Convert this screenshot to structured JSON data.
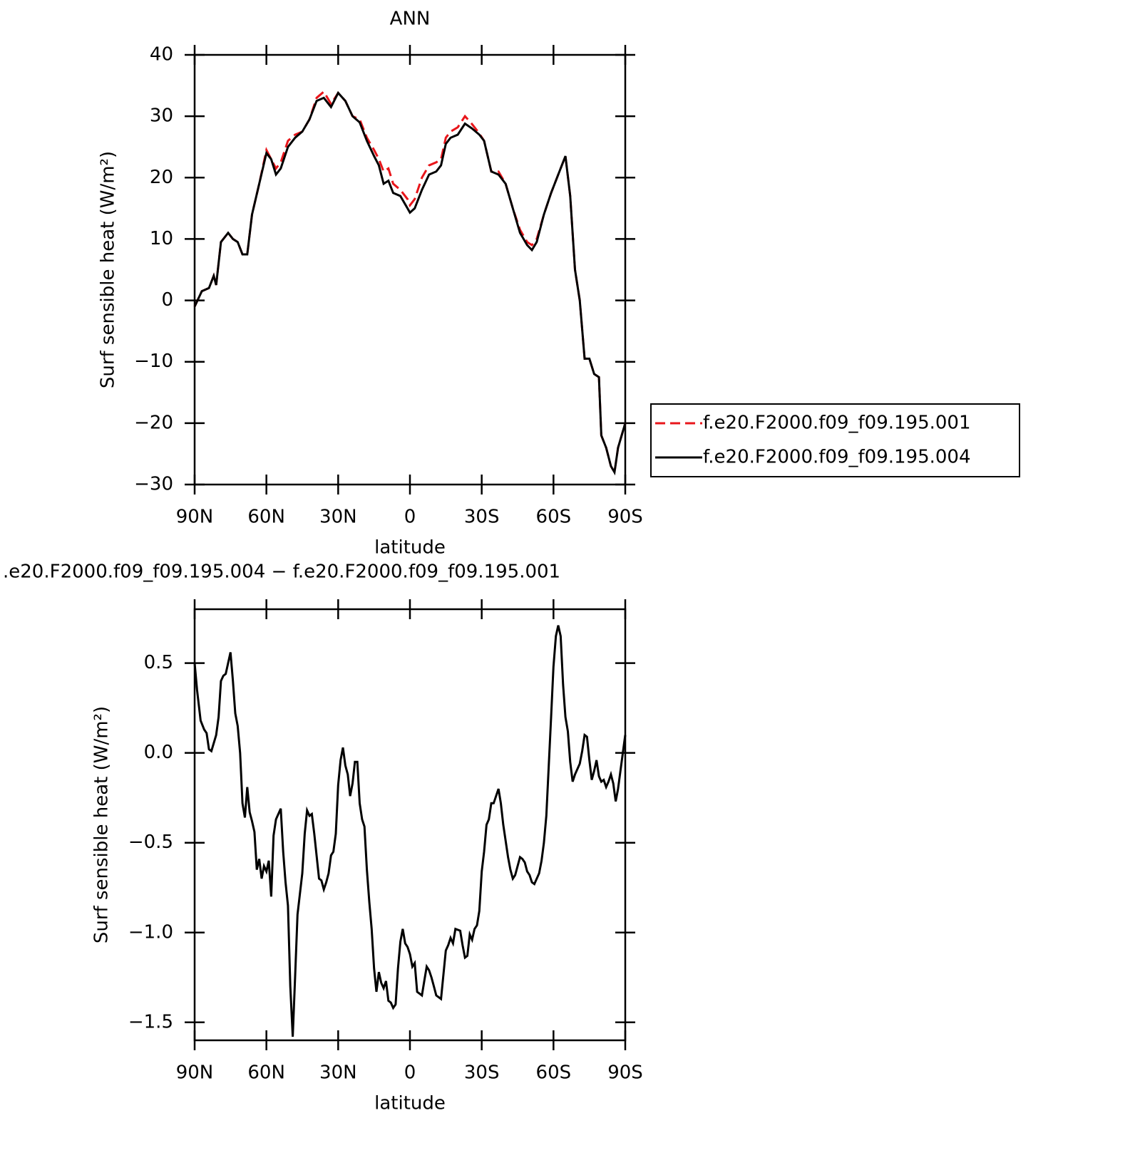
{
  "chart_data": [
    {
      "type": "line",
      "title": "ANN",
      "xlabel": "latitude",
      "ylabel": "Surf sensible heat (W/m²)",
      "x": [
        90,
        87,
        84,
        82,
        81,
        79,
        76,
        74,
        72,
        70,
        68,
        66,
        63,
        60,
        58,
        56,
        54,
        51,
        48,
        45,
        42,
        39,
        36,
        33,
        30,
        27,
        24,
        21,
        18,
        15,
        13,
        11,
        9,
        7,
        4,
        1,
        0,
        -2,
        -5,
        -8,
        -11,
        -13,
        -15,
        -17,
        -20,
        -23,
        -26,
        -29,
        -31,
        -34,
        -37,
        -40,
        -43,
        -46,
        -49,
        -51,
        -53,
        -56,
        -59,
        -62,
        -65,
        -67,
        -69,
        -71,
        -73,
        -75,
        -77,
        -79,
        -80,
        -82,
        -84,
        -85.5,
        -87,
        -90
      ],
      "series": [
        {
          "name": "f.e20.F2000.f09_f09.195.001",
          "color": "#e8161b",
          "style": "dashed",
          "values": [
            -1,
            1.5,
            2,
            4,
            2.5,
            9.5,
            11,
            10,
            9.5,
            7.5,
            7.5,
            14,
            19,
            24.5,
            23,
            21.5,
            22.5,
            26,
            27,
            27.5,
            29.5,
            33,
            34,
            32,
            33.8,
            32.5,
            30,
            29.5,
            26.5,
            24.5,
            23,
            21,
            21.5,
            19,
            18,
            16.5,
            15.5,
            16.5,
            20,
            22,
            22.5,
            23,
            26.5,
            27.5,
            28.2,
            30,
            28.7,
            27.2,
            26,
            21,
            21,
            19,
            15,
            11.5,
            9.5,
            9,
            10,
            14,
            17.5,
            20.5,
            23.5,
            17,
            5,
            0,
            -9.5,
            -9.5,
            -12,
            -12.5,
            -22,
            -24,
            -27,
            -28,
            -24,
            -20
          ]
        },
        {
          "name": "f.e20.F2000.f09_f09.195.004",
          "color": "#000000",
          "style": "solid",
          "values": [
            -1,
            1.5,
            2,
            4,
            2.5,
            9.5,
            11,
            10,
            9.5,
            7.5,
            7.5,
            14,
            19,
            24,
            23,
            20.5,
            21.5,
            25,
            26.5,
            27.5,
            29.5,
            32.5,
            33,
            31.5,
            33.8,
            32.5,
            30,
            29,
            26,
            23.5,
            22,
            19,
            19.5,
            17.5,
            17,
            15,
            14.3,
            15,
            18,
            20.5,
            21,
            22,
            25.5,
            26.5,
            27,
            28.8,
            28,
            27,
            26,
            21,
            20.5,
            19,
            15,
            11,
            9,
            8.2,
            9.5,
            14,
            17.5,
            20.5,
            23.5,
            17,
            5,
            0,
            -9.5,
            -9.5,
            -12,
            -12.5,
            -22,
            -24,
            -27,
            -28,
            -24,
            -20
          ]
        }
      ],
      "xlim": [
        90,
        -90
      ],
      "xticks": [
        {
          "value": 90,
          "label": "90N"
        },
        {
          "value": 60,
          "label": "60N"
        },
        {
          "value": 30,
          "label": "30N"
        },
        0,
        {
          "value": -30,
          "label": "30S"
        },
        {
          "value": -60,
          "label": "60S"
        },
        {
          "value": -90,
          "label": "90S"
        }
      ],
      "ylim": [
        -30,
        40
      ],
      "yticks": [
        {
          "value": -30,
          "label": "−30"
        },
        {
          "value": -20,
          "label": "−20"
        },
        {
          "value": -10,
          "label": "−10"
        },
        0,
        10,
        20,
        30,
        40
      ],
      "legend": "right"
    },
    {
      "type": "line",
      "title": ".e20.F2000.f09_f09.195.004 − f.e20.F2000.f09_f09.195.001",
      "xlabel": "latitude",
      "ylabel": "Surf sensible heat (W/m²)",
      "x": [
        90,
        89,
        87.5,
        86,
        85,
        84,
        83,
        81,
        80,
        79,
        78,
        77,
        75,
        74,
        73,
        72,
        71,
        70,
        69,
        68,
        67,
        66,
        65,
        64,
        63,
        62,
        61,
        60,
        59,
        58,
        57,
        56,
        54,
        53,
        52,
        51,
        50,
        49,
        48,
        47,
        45,
        44,
        43,
        42,
        41,
        40,
        38,
        37,
        36,
        35,
        34,
        33,
        32,
        31,
        30,
        29,
        28,
        27,
        26,
        25,
        24,
        23,
        22,
        21,
        20,
        19,
        18,
        17,
        16,
        15,
        14,
        13,
        12,
        11,
        10,
        9,
        8,
        7,
        6,
        5,
        4,
        3,
        2,
        1,
        0,
        -1,
        -2,
        -3,
        -5,
        -6,
        -7,
        -8,
        -9,
        -10,
        -11,
        -13,
        -15,
        -16,
        -17,
        -18,
        -19,
        -21,
        -22,
        -23,
        -24,
        -25,
        -26,
        -27,
        -28,
        -29,
        -30,
        -31,
        -32,
        -33,
        -34,
        -35,
        -36,
        -37,
        -38,
        -39,
        -41,
        -42,
        -43,
        -44,
        -46,
        -47,
        -48,
        -49,
        -50,
        -51,
        -52,
        -54,
        -55,
        -56,
        -57,
        -58,
        -59,
        -60,
        -61,
        -62,
        -63,
        -64,
        -65,
        -66,
        -67,
        -68,
        -69,
        -71,
        -72,
        -73,
        -74,
        -75,
        -76,
        -77,
        -78,
        -79,
        -80,
        -81,
        -82,
        -83,
        -84,
        -85,
        -86,
        -87,
        -89,
        -90
      ],
      "series": [
        {
          "color": "#000000",
          "style": "solid",
          "values": [
            0.5,
            0.35,
            0.18,
            0.13,
            0.11,
            0.02,
            0.01,
            0.1,
            0.2,
            0.4,
            0.43,
            0.44,
            0.56,
            0.4,
            0.22,
            0.15,
            0,
            -0.28,
            -0.36,
            -0.19,
            -0.33,
            -0.38,
            -0.44,
            -0.65,
            -0.59,
            -0.7,
            -0.63,
            -0.66,
            -0.6,
            -0.8,
            -0.46,
            -0.37,
            -0.31,
            -0.55,
            -0.72,
            -0.85,
            -1.3,
            -1.58,
            -1.25,
            -0.9,
            -0.67,
            -0.45,
            -0.32,
            -0.35,
            -0.34,
            -0.45,
            -0.7,
            -0.71,
            -0.76,
            -0.72,
            -0.67,
            -0.57,
            -0.55,
            -0.45,
            -0.18,
            -0.04,
            0.03,
            -0.07,
            -0.12,
            -0.24,
            -0.17,
            -0.05,
            -0.05,
            -0.28,
            -0.37,
            -0.41,
            -0.65,
            -0.83,
            -0.98,
            -1.2,
            -1.33,
            -1.22,
            -1.28,
            -1.31,
            -1.27,
            -1.38,
            -1.39,
            -1.42,
            -1.4,
            -1.2,
            -1.05,
            -0.98,
            -1.06,
            -1.08,
            -1.12,
            -1.19,
            -1.17,
            -1.33,
            -1.35,
            -1.27,
            -1.19,
            -1.21,
            -1.25,
            -1.3,
            -1.35,
            -1.37,
            -1.1,
            -1.07,
            -1.03,
            -1.06,
            -0.98,
            -0.99,
            -1.07,
            -1.14,
            -1.13,
            -1.01,
            -1.04,
            -0.98,
            -0.96,
            -0.88,
            -0.66,
            -0.55,
            -0.4,
            -0.37,
            -0.28,
            -0.28,
            -0.24,
            -0.2,
            -0.28,
            -0.4,
            -0.58,
            -0.65,
            -0.7,
            -0.68,
            -0.58,
            -0.59,
            -0.61,
            -0.66,
            -0.68,
            -0.72,
            -0.73,
            -0.67,
            -0.6,
            -0.5,
            -0.35,
            -0.08,
            0.2,
            0.48,
            0.65,
            0.71,
            0.65,
            0.38,
            0.2,
            0.12,
            -0.05,
            -0.16,
            -0.12,
            -0.06,
            0.01,
            0.1,
            0.09,
            -0.04,
            -0.15,
            -0.1,
            -0.04,
            -0.13,
            -0.16,
            -0.15,
            -0.19,
            -0.16,
            -0.12,
            -0.17,
            -0.27,
            -0.2,
            0,
            0.1
          ]
        }
      ],
      "xlim": [
        90,
        -90
      ],
      "xticks": [
        {
          "value": 90,
          "label": "90N"
        },
        {
          "value": 60,
          "label": "60N"
        },
        {
          "value": 30,
          "label": "30N"
        },
        0,
        {
          "value": -30,
          "label": "30S"
        },
        {
          "value": -60,
          "label": "60S"
        },
        {
          "value": -90,
          "label": "90S"
        }
      ],
      "ylim": [
        -1.6,
        0.8
      ],
      "yticks": [
        {
          "value": -1.5,
          "label": "−1.5"
        },
        {
          "value": -1,
          "label": "−1.0"
        },
        {
          "value": -0.5,
          "label": "−0.5"
        },
        {
          "value": 0,
          "label": "0.0"
        },
        {
          "value": 0.5,
          "label": "0.5"
        }
      ]
    }
  ]
}
